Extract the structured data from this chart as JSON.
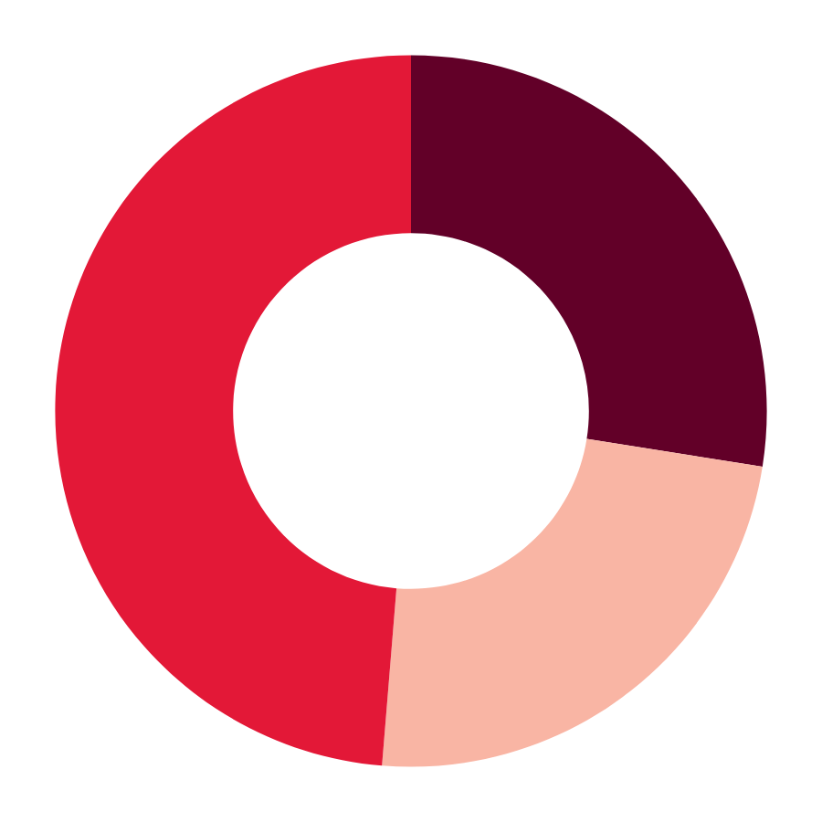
{
  "chart_data": {
    "type": "donut",
    "categories": [
      null,
      null,
      null
    ],
    "values": [
      27.5,
      23.8,
      48.7
    ],
    "colors": [
      "#620028",
      "#f9b5a4",
      "#e31837"
    ]
  }
}
